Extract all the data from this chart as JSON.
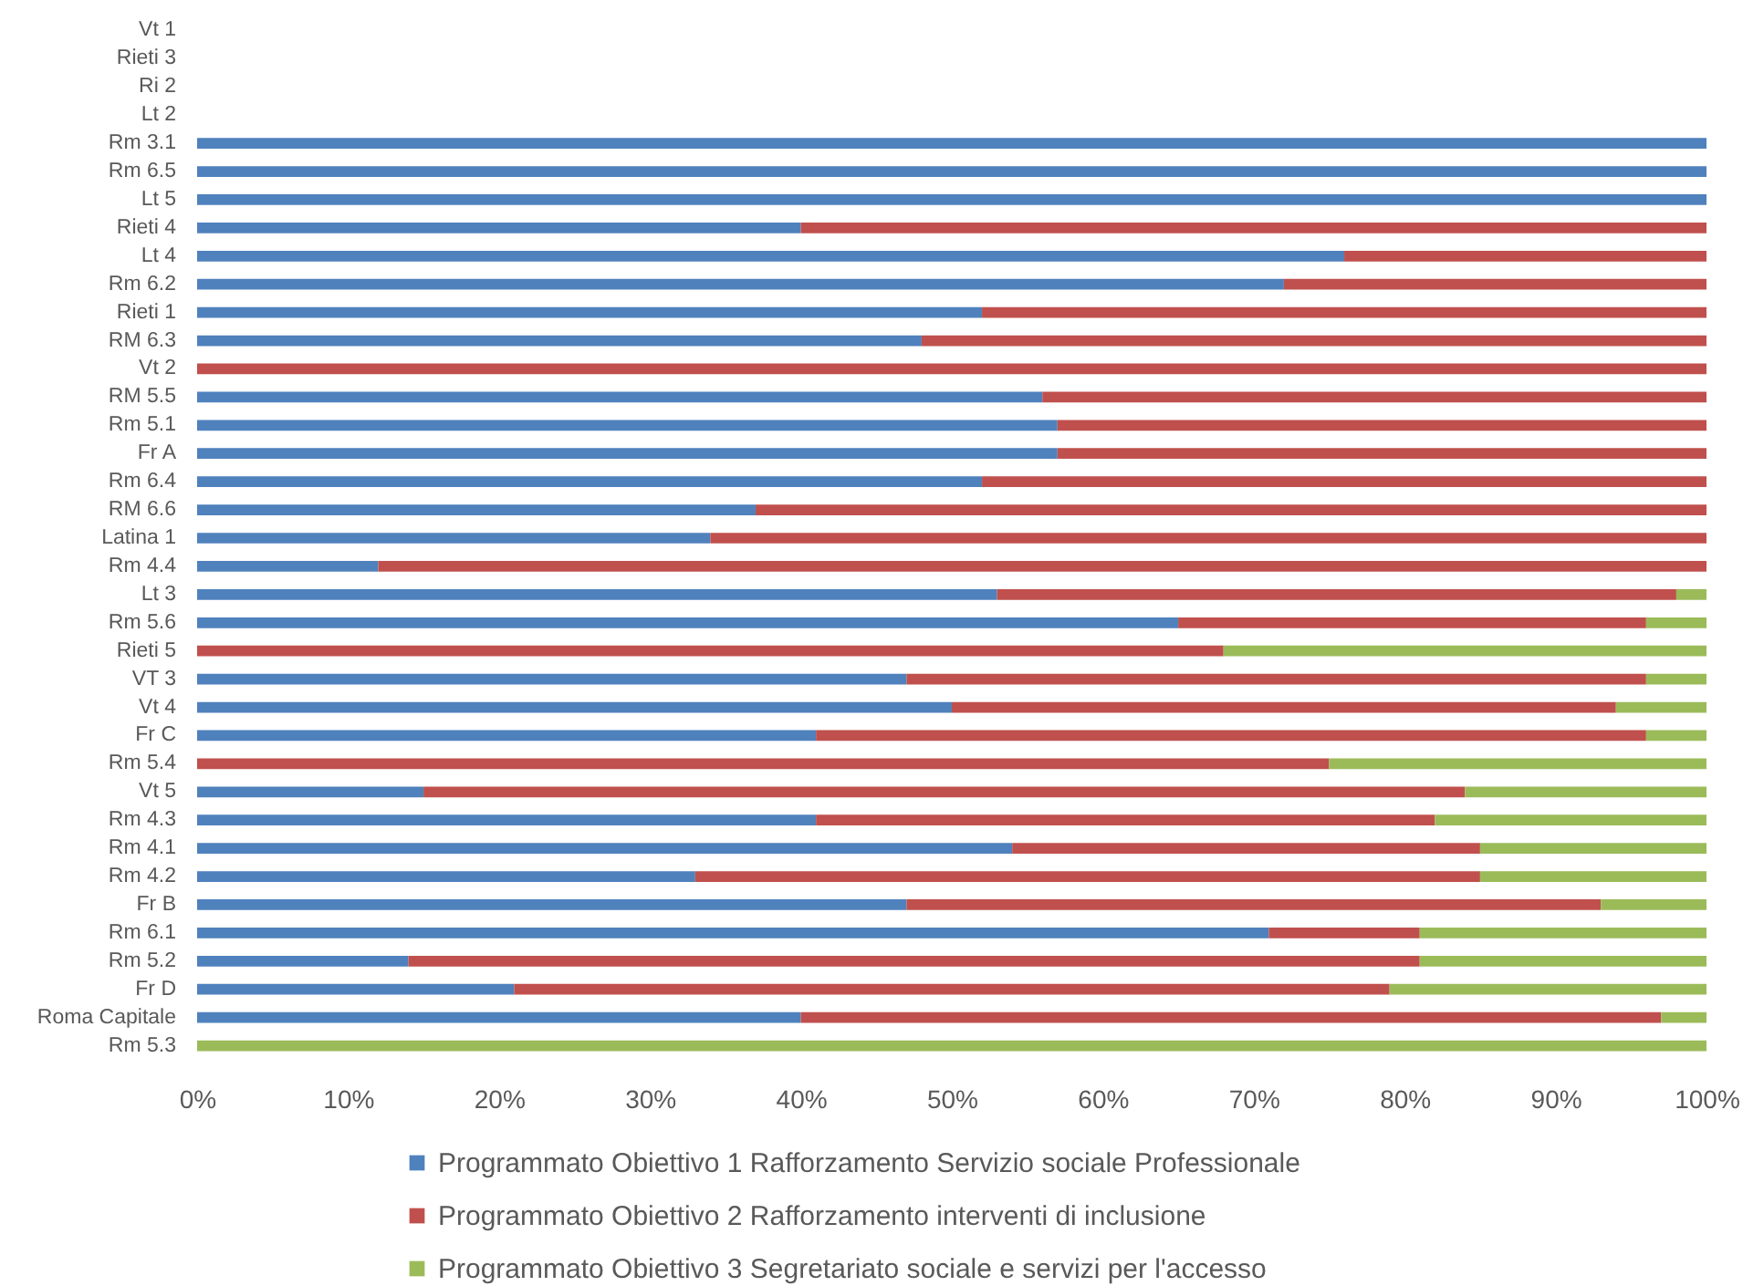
{
  "chart_data": {
    "type": "bar",
    "orientation": "horizontal",
    "stacked": true,
    "categories": [
      "Vt 1",
      "Rieti 3",
      "Ri 2",
      "Lt 2",
      "Rm 3.1",
      "Rm 6.5",
      "Lt 5",
      "Rieti 4",
      "Lt 4",
      "Rm 6.2",
      "Rieti 1",
      "RM 6.3",
      "Vt 2",
      "RM 5.5",
      "Rm 5.1",
      "Fr A",
      "Rm 6.4",
      "RM 6.6",
      "Latina 1",
      "Rm 4.4",
      "Lt 3",
      "Rm 5.6",
      "Rieti 5",
      "VT 3",
      "Vt 4",
      "Fr C",
      "Rm 5.4",
      "Vt 5",
      "Rm 4.3",
      "Rm 4.1",
      "Rm 4.2",
      "Fr B",
      "Rm 6.1",
      "Rm 5.2",
      "Fr D",
      "Roma Capitale",
      "Rm 5.3"
    ],
    "series": [
      {
        "name": "Programmato Obiettivo 1 Rafforzamento Servizio sociale Professionale",
        "color": "#4f81bd",
        "values": [
          null,
          null,
          null,
          null,
          100,
          100,
          100,
          40,
          76,
          72,
          52,
          48,
          0,
          56,
          57,
          57,
          52,
          37,
          34,
          12,
          53,
          65,
          0,
          47,
          50,
          41,
          0,
          15,
          41,
          54,
          33,
          47,
          71,
          14,
          21,
          40,
          0
        ]
      },
      {
        "name": "Programmato Obiettivo 2 Rafforzamento interventi di inclusione",
        "color": "#c0504d",
        "values": [
          null,
          null,
          null,
          null,
          0,
          0,
          0,
          60,
          24,
          28,
          48,
          52,
          100,
          44,
          43,
          43,
          48,
          63,
          66,
          88,
          45,
          31,
          68,
          49,
          44,
          55,
          75,
          69,
          41,
          31,
          52,
          46,
          10,
          67,
          58,
          57,
          0
        ]
      },
      {
        "name": "Programmato Obiettivo 3 Segretariato sociale e servizi per l'accesso",
        "color": "#9bbb59",
        "values": [
          null,
          null,
          null,
          null,
          0,
          0,
          0,
          0,
          0,
          0,
          0,
          0,
          0,
          0,
          0,
          0,
          0,
          0,
          0,
          0,
          2,
          4,
          32,
          4,
          6,
          4,
          25,
          16,
          18,
          15,
          15,
          7,
          19,
          19,
          21,
          3,
          100
        ]
      }
    ],
    "xlim": [
      0,
      100
    ],
    "xticks": [
      {
        "value": 0,
        "label": "0%"
      },
      {
        "value": 10,
        "label": "10%"
      },
      {
        "value": 20,
        "label": "20%"
      },
      {
        "value": 30,
        "label": "30%"
      },
      {
        "value": 40,
        "label": "40%"
      },
      {
        "value": 50,
        "label": "50%"
      },
      {
        "value": 60,
        "label": "60%"
      },
      {
        "value": 70,
        "label": "70%"
      },
      {
        "value": 80,
        "label": "80%"
      },
      {
        "value": 90,
        "label": "90%"
      },
      {
        "value": 100,
        "label": "100%"
      }
    ],
    "grid": false,
    "legend": "bottom"
  }
}
